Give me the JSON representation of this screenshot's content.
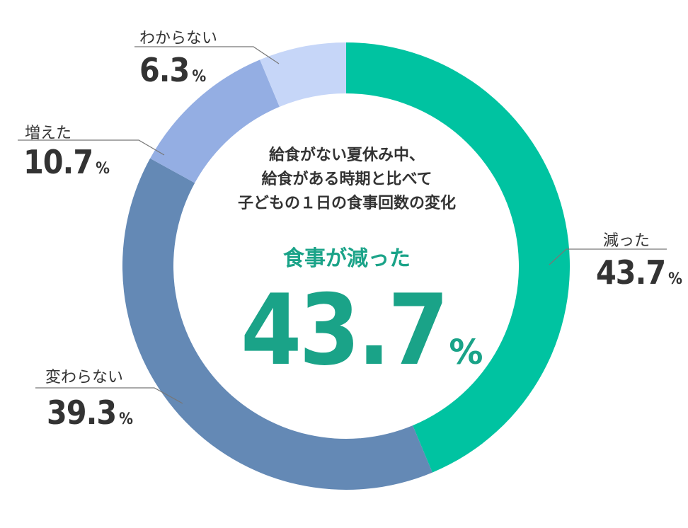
{
  "chart_data": {
    "type": "pie",
    "categories": [
      "減った",
      "変わらない",
      "増えた",
      "わからない"
    ],
    "values": [
      43.7,
      39.3,
      10.7,
      6.3
    ],
    "colors": [
      "#00c3a1",
      "#6489b5",
      "#94aee3",
      "#c6d6f8"
    ],
    "unit": "%",
    "donut": true,
    "legend": "callouts",
    "center_title_lines": [
      "給食がない夏休み中、",
      "給食がある時期と比べて",
      "子どもの１日の食事回数の変化"
    ],
    "center_highlight_label": "食事が減った",
    "center_highlight_value": "43.7",
    "center_highlight_color": "#1aa388"
  }
}
